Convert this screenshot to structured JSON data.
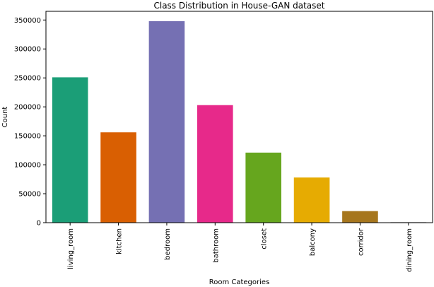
{
  "chart_data": {
    "type": "bar",
    "title": "Class Distribution in House-GAN dataset",
    "xlabel": "Room Categories",
    "ylabel": "Count",
    "categories": [
      "living_room",
      "kitchen",
      "bedroom",
      "bathroom",
      "closet",
      "balcony",
      "corridor",
      "dining_room"
    ],
    "values": [
      251000,
      156000,
      348000,
      203000,
      121000,
      78000,
      20000,
      800
    ],
    "colors": [
      "#1b9e77",
      "#d95f02",
      "#7570b3",
      "#e7298a",
      "#66a61e",
      "#e6ab02",
      "#a6761d",
      "#666666"
    ],
    "ylim": [
      0,
      365000
    ],
    "yticks": [
      0,
      50000,
      100000,
      150000,
      200000,
      250000,
      300000,
      350000
    ],
    "grid": false,
    "legend": "none"
  }
}
